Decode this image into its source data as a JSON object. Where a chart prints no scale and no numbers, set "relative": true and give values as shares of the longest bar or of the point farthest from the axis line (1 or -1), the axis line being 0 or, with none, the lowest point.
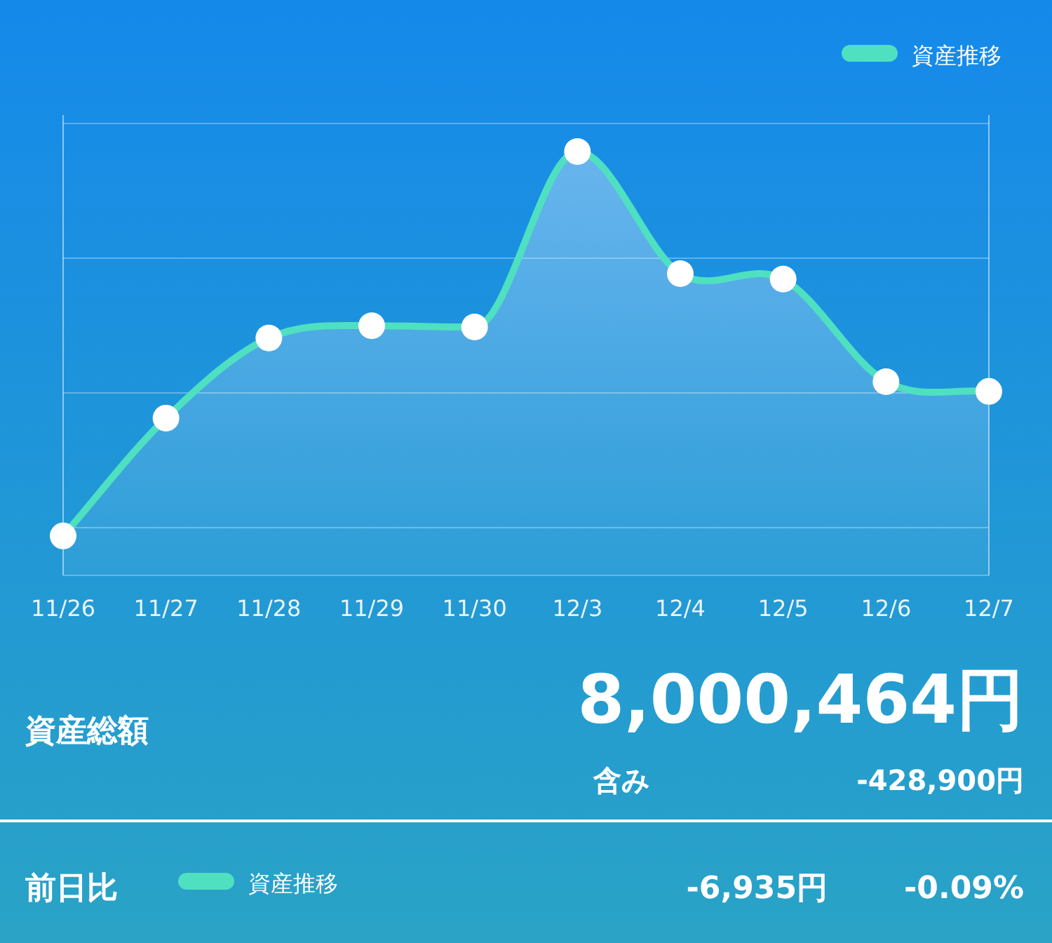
{
  "chart_data": {
    "type": "area",
    "relative": true,
    "categories": [
      "11/26",
      "11/27",
      "11/28",
      "11/29",
      "11/30",
      "12/3",
      "12/4",
      "12/5",
      "12/6",
      "12/7"
    ],
    "series": [
      {
        "name": "資産推移",
        "color": "#4ee0c0",
        "values": [
          0.093,
          0.371,
          0.56,
          0.589,
          0.586,
          1,
          0.712,
          0.699,
          0.457,
          0.434
        ]
      }
    ],
    "marker": "circle",
    "grid": "y",
    "legend": "top right",
    "annotations": [
      "資産総額",
      "8,000,464円",
      "含み",
      "-428,900円",
      "前日比",
      "-6,935円",
      "-0.09%"
    ]
  }
}
